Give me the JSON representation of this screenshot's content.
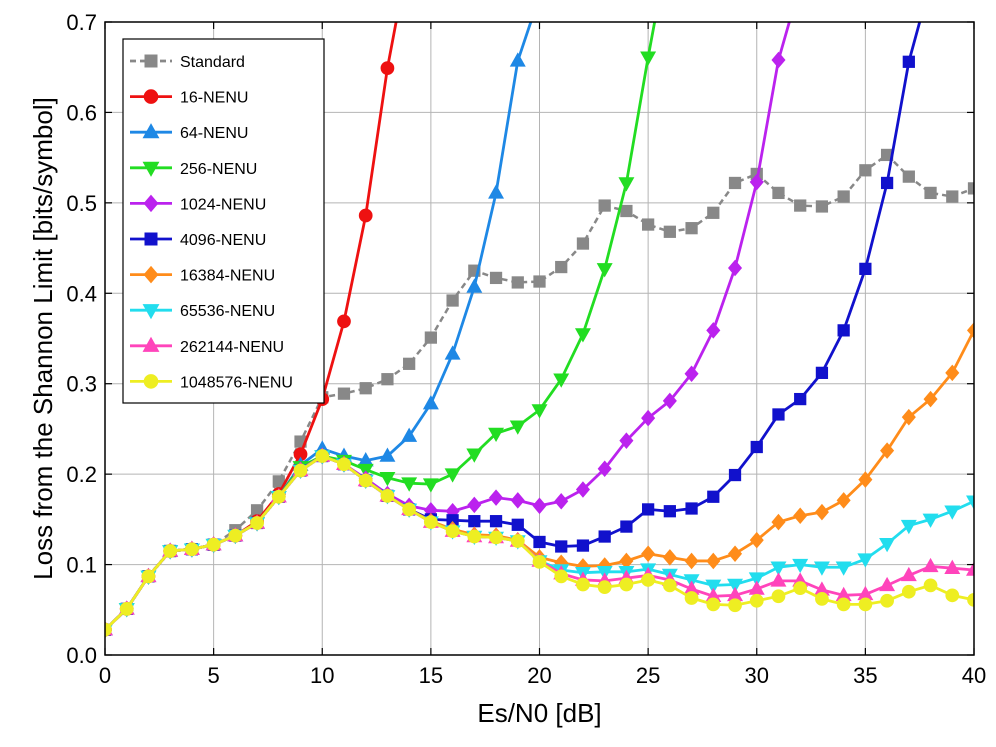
{
  "chart_data": {
    "type": "line",
    "xlabel": "Es/N0 [dB]",
    "ylabel": "Loss from the Shannon Limit [bits/symbol]",
    "xlim": [
      0,
      40
    ],
    "ylim": [
      0,
      0.7
    ],
    "xticks": [
      0,
      5,
      10,
      15,
      20,
      25,
      30,
      35,
      40
    ],
    "yticks": [
      0.0,
      0.1,
      0.2,
      0.3,
      0.4,
      0.5,
      0.6,
      0.7
    ],
    "ytick_labels": [
      "0.0",
      "0.1",
      "0.2",
      "0.3",
      "0.4",
      "0.5",
      "0.6",
      "0.7"
    ],
    "grid": true,
    "legend_position": "top-left",
    "series": [
      {
        "name": "Standard",
        "color": "#888888",
        "marker": "square",
        "dash": true,
        "x": [
          0,
          1,
          2,
          3,
          4,
          5,
          6,
          7,
          8,
          9,
          10,
          11,
          12,
          13,
          14,
          15,
          16,
          17,
          18,
          19,
          20,
          21,
          22,
          23,
          24,
          25,
          26,
          27,
          28,
          29,
          30,
          31,
          32,
          33,
          34,
          35,
          36,
          37,
          38,
          39,
          40
        ],
        "y": [
          0.028,
          0.051,
          0.087,
          0.115,
          0.117,
          0.122,
          0.138,
          0.16,
          0.192,
          0.236,
          0.285,
          0.289,
          0.295,
          0.305,
          0.322,
          0.351,
          0.392,
          0.425,
          0.417,
          0.412,
          0.413,
          0.429,
          0.455,
          0.497,
          0.491,
          0.476,
          0.468,
          0.472,
          0.489,
          0.522,
          0.532,
          0.511,
          0.497,
          0.496,
          0.507,
          0.536,
          0.553,
          0.529,
          0.511,
          0.507,
          0.516
        ]
      },
      {
        "name": "16-NENU",
        "color": "#ee1111",
        "marker": "circle",
        "dash": false,
        "x": [
          0,
          1,
          2,
          3,
          4,
          5,
          6,
          7,
          8,
          9,
          10,
          11,
          12,
          13,
          13.4
        ],
        "y": [
          0.028,
          0.051,
          0.087,
          0.115,
          0.117,
          0.122,
          0.132,
          0.148,
          0.178,
          0.222,
          0.283,
          0.369,
          0.486,
          0.649,
          0.7
        ]
      },
      {
        "name": "64-NENU",
        "color": "#1e88e5",
        "marker": "triangle-up",
        "dash": false,
        "x": [
          0,
          1,
          2,
          3,
          4,
          5,
          6,
          7,
          8,
          9,
          10,
          11,
          12,
          13,
          14,
          15,
          16,
          17,
          18,
          19,
          19.6
        ],
        "y": [
          0.028,
          0.051,
          0.087,
          0.115,
          0.117,
          0.122,
          0.132,
          0.146,
          0.175,
          0.21,
          0.228,
          0.22,
          0.215,
          0.22,
          0.242,
          0.278,
          0.333,
          0.407,
          0.511,
          0.657,
          0.7
        ]
      },
      {
        "name": "256-NENU",
        "color": "#22dd22",
        "marker": "triangle-down",
        "dash": false,
        "x": [
          0,
          1,
          2,
          3,
          4,
          5,
          6,
          7,
          8,
          9,
          10,
          11,
          12,
          13,
          14,
          15,
          16,
          17,
          18,
          19,
          20,
          21,
          22,
          23,
          24,
          25,
          25.3
        ],
        "y": [
          0.028,
          0.051,
          0.087,
          0.115,
          0.117,
          0.122,
          0.132,
          0.146,
          0.175,
          0.208,
          0.22,
          0.215,
          0.205,
          0.196,
          0.19,
          0.189,
          0.2,
          0.222,
          0.245,
          0.253,
          0.271,
          0.305,
          0.355,
          0.427,
          0.522,
          0.661,
          0.7
        ]
      },
      {
        "name": "1024-NENU",
        "color": "#bb22ee",
        "marker": "diamond",
        "dash": false,
        "x": [
          0,
          1,
          2,
          3,
          4,
          5,
          6,
          7,
          8,
          9,
          10,
          11,
          12,
          13,
          14,
          15,
          16,
          17,
          18,
          19,
          20,
          21,
          22,
          23,
          24,
          25,
          26,
          27,
          28,
          29,
          30,
          31,
          31.5
        ],
        "y": [
          0.028,
          0.051,
          0.087,
          0.115,
          0.117,
          0.122,
          0.132,
          0.146,
          0.175,
          0.205,
          0.22,
          0.211,
          0.195,
          0.178,
          0.165,
          0.16,
          0.159,
          0.166,
          0.174,
          0.171,
          0.165,
          0.17,
          0.183,
          0.206,
          0.237,
          0.262,
          0.281,
          0.311,
          0.359,
          0.428,
          0.523,
          0.658,
          0.7
        ]
      },
      {
        "name": "4096-NENU",
        "color": "#1111cc",
        "marker": "square",
        "dash": false,
        "x": [
          0,
          1,
          2,
          3,
          4,
          5,
          6,
          7,
          8,
          9,
          10,
          11,
          12,
          13,
          14,
          15,
          16,
          17,
          18,
          19,
          20,
          21,
          22,
          23,
          24,
          25,
          26,
          27,
          28,
          29,
          30,
          31,
          32,
          33,
          34,
          35,
          36,
          37,
          37.5
        ],
        "y": [
          0.028,
          0.051,
          0.087,
          0.115,
          0.117,
          0.122,
          0.132,
          0.146,
          0.175,
          0.204,
          0.22,
          0.211,
          0.193,
          0.176,
          0.161,
          0.15,
          0.149,
          0.148,
          0.148,
          0.144,
          0.125,
          0.12,
          0.121,
          0.131,
          0.142,
          0.161,
          0.159,
          0.162,
          0.175,
          0.199,
          0.23,
          0.266,
          0.283,
          0.312,
          0.359,
          0.427,
          0.522,
          0.656,
          0.7
        ]
      },
      {
        "name": "16384-NENU",
        "color": "#ff8c1a",
        "marker": "diamond",
        "dash": false,
        "x": [
          0,
          1,
          2,
          3,
          4,
          5,
          6,
          7,
          8,
          9,
          10,
          11,
          12,
          13,
          14,
          15,
          16,
          17,
          18,
          19,
          20,
          21,
          22,
          23,
          24,
          25,
          26,
          27,
          28,
          29,
          30,
          31,
          32,
          33,
          34,
          35,
          36,
          37,
          38,
          39,
          40
        ],
        "y": [
          0.028,
          0.051,
          0.087,
          0.115,
          0.117,
          0.122,
          0.132,
          0.146,
          0.175,
          0.204,
          0.22,
          0.211,
          0.193,
          0.176,
          0.161,
          0.148,
          0.139,
          0.133,
          0.132,
          0.127,
          0.108,
          0.102,
          0.098,
          0.099,
          0.104,
          0.112,
          0.108,
          0.104,
          0.104,
          0.112,
          0.127,
          0.147,
          0.154,
          0.158,
          0.171,
          0.194,
          0.226,
          0.263,
          0.283,
          0.312,
          0.359
        ]
      },
      {
        "name": "65536-NENU",
        "color": "#22ddee",
        "marker": "triangle-down",
        "dash": false,
        "x": [
          0,
          1,
          2,
          3,
          4,
          5,
          6,
          7,
          8,
          9,
          10,
          11,
          12,
          13,
          14,
          15,
          16,
          17,
          18,
          19,
          20,
          21,
          22,
          23,
          24,
          25,
          26,
          27,
          28,
          29,
          30,
          31,
          32,
          33,
          34,
          35,
          36,
          37,
          38,
          39,
          40
        ],
        "y": [
          0.028,
          0.051,
          0.087,
          0.115,
          0.117,
          0.122,
          0.132,
          0.146,
          0.175,
          0.204,
          0.22,
          0.211,
          0.193,
          0.176,
          0.161,
          0.147,
          0.137,
          0.131,
          0.13,
          0.126,
          0.104,
          0.094,
          0.091,
          0.092,
          0.092,
          0.095,
          0.089,
          0.083,
          0.077,
          0.078,
          0.085,
          0.097,
          0.1,
          0.097,
          0.097,
          0.106,
          0.123,
          0.143,
          0.15,
          0.159,
          0.17
        ]
      },
      {
        "name": "262144-NENU",
        "color": "#ff44bb",
        "marker": "triangle-up",
        "dash": false,
        "x": [
          0,
          1,
          2,
          3,
          4,
          5,
          6,
          7,
          8,
          9,
          10,
          11,
          12,
          13,
          14,
          15,
          16,
          17,
          18,
          19,
          20,
          21,
          22,
          23,
          24,
          25,
          26,
          27,
          28,
          29,
          30,
          31,
          32,
          33,
          34,
          35,
          36,
          37,
          38,
          39,
          40
        ],
        "y": [
          0.028,
          0.051,
          0.087,
          0.115,
          0.117,
          0.122,
          0.132,
          0.146,
          0.175,
          0.204,
          0.22,
          0.211,
          0.193,
          0.176,
          0.161,
          0.147,
          0.137,
          0.131,
          0.13,
          0.126,
          0.104,
          0.09,
          0.083,
          0.082,
          0.085,
          0.088,
          0.083,
          0.073,
          0.065,
          0.066,
          0.073,
          0.082,
          0.082,
          0.072,
          0.066,
          0.067,
          0.077,
          0.088,
          0.098,
          0.096,
          0.094
        ]
      },
      {
        "name": "1048576-NENU",
        "color": "#eeee22",
        "marker": "circle",
        "dash": false,
        "x": [
          0,
          1,
          2,
          3,
          4,
          5,
          6,
          7,
          8,
          9,
          10,
          11,
          12,
          13,
          14,
          15,
          16,
          17,
          18,
          19,
          20,
          21,
          22,
          23,
          24,
          25,
          26,
          27,
          28,
          29,
          30,
          31,
          32,
          33,
          34,
          35,
          36,
          37,
          38,
          39,
          40
        ],
        "y": [
          0.028,
          0.051,
          0.087,
          0.115,
          0.117,
          0.122,
          0.132,
          0.146,
          0.175,
          0.204,
          0.22,
          0.211,
          0.193,
          0.176,
          0.161,
          0.147,
          0.137,
          0.131,
          0.13,
          0.126,
          0.103,
          0.087,
          0.078,
          0.075,
          0.078,
          0.083,
          0.077,
          0.063,
          0.056,
          0.055,
          0.06,
          0.065,
          0.074,
          0.062,
          0.056,
          0.056,
          0.06,
          0.07,
          0.077,
          0.066,
          0.061
        ]
      }
    ]
  }
}
